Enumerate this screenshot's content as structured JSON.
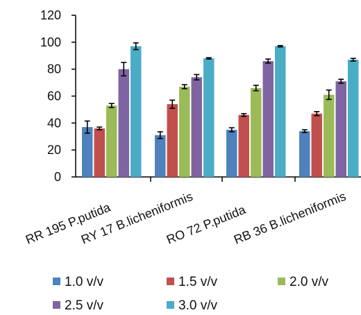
{
  "chart_data": {
    "type": "bar",
    "categories": [
      "RR 195 P.putida",
      "RY 17  B.licheniformis",
      "RO 72 P.putida",
      "RB 36 B.licheniformis"
    ],
    "series": [
      {
        "name": "1.0 v/v",
        "color": "#4f81bd",
        "values": [
          37,
          31,
          35,
          34
        ],
        "errors": [
          4.5,
          2.5,
          1.5,
          1.0
        ]
      },
      {
        "name": "1.5  v/v",
        "color": "#c0504d",
        "values": [
          36,
          54,
          46,
          47
        ],
        "errors": [
          1.0,
          3.0,
          1.0,
          1.5
        ]
      },
      {
        "name": "2.0  v/v",
        "color": "#9bbb59",
        "values": [
          53,
          67,
          66,
          61
        ],
        "errors": [
          1.5,
          1.5,
          2.0,
          3.5
        ]
      },
      {
        "name": "2.5  v/v",
        "color": "#8064a2",
        "values": [
          80,
          74,
          86,
          71
        ],
        "errors": [
          5.0,
          2.0,
          1.5,
          1.5
        ]
      },
      {
        "name": "3.0  v/v",
        "color": "#4bacc6",
        "values": [
          97,
          88,
          97,
          87
        ],
        "errors": [
          2.5,
          0.5,
          0.5,
          1.0
        ]
      }
    ],
    "ylim": [
      0,
      120
    ],
    "yticks": [
      0,
      20,
      40,
      60,
      80,
      100,
      120
    ],
    "xlabel": "",
    "ylabel": "",
    "title": "",
    "grid": false,
    "legend_position": "bottom"
  }
}
